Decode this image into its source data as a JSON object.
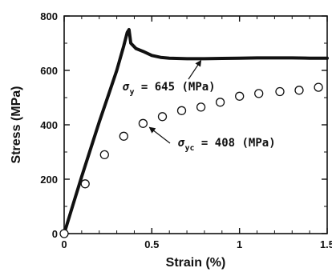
{
  "chart_data": {
    "type": "line",
    "title": "",
    "xlabel": "Strain (%)",
    "ylabel": "Stress (MPa)",
    "xlim": [
      0,
      1.5
    ],
    "ylim": [
      0,
      800
    ],
    "x_ticks": [
      0,
      0.5,
      1,
      1.5
    ],
    "x_tick_labels": [
      "0",
      "0.5",
      "1",
      "1.5"
    ],
    "y_ticks": [
      0,
      200,
      400,
      600,
      800
    ],
    "y_tick_labels": [
      "0",
      "200",
      "400",
      "600",
      "800"
    ],
    "grid": false,
    "legend": "none",
    "series": [
      {
        "style": "thick-solid-line",
        "color": "#111111",
        "x": [
          0.0,
          0.05,
          0.1,
          0.15,
          0.2,
          0.25,
          0.3,
          0.34,
          0.36,
          0.37,
          0.38,
          0.41,
          0.45,
          0.5,
          0.55,
          0.6,
          0.7,
          0.8,
          0.9,
          1.0,
          1.1,
          1.2,
          1.3,
          1.4,
          1.5
        ],
        "y": [
          0,
          105,
          210,
          310,
          410,
          505,
          600,
          690,
          740,
          750,
          700,
          680,
          670,
          655,
          648,
          645,
          643,
          643,
          644,
          645,
          646,
          646,
          646,
          645,
          645
        ]
      },
      {
        "style": "open-circle-markers",
        "color": "#111111",
        "x": [
          0.0,
          0.12,
          0.23,
          0.34,
          0.45,
          0.56,
          0.67,
          0.78,
          0.89,
          1.0,
          1.11,
          1.23,
          1.34,
          1.45
        ],
        "y": [
          0,
          183,
          290,
          358,
          405,
          430,
          452,
          465,
          483,
          505,
          515,
          522,
          527,
          538
        ]
      }
    ],
    "annotations": [
      {
        "id": "sigma-y",
        "symbol": "σ",
        "subscript": "y",
        "text": " = 645 (MPa)",
        "points_to": [
          0.9,
          645
        ]
      },
      {
        "id": "sigma-yc",
        "symbol": "σ",
        "subscript": "yc",
        "text": " = 408 (MPa)",
        "points_to": [
          0.45,
          408
        ]
      }
    ]
  }
}
